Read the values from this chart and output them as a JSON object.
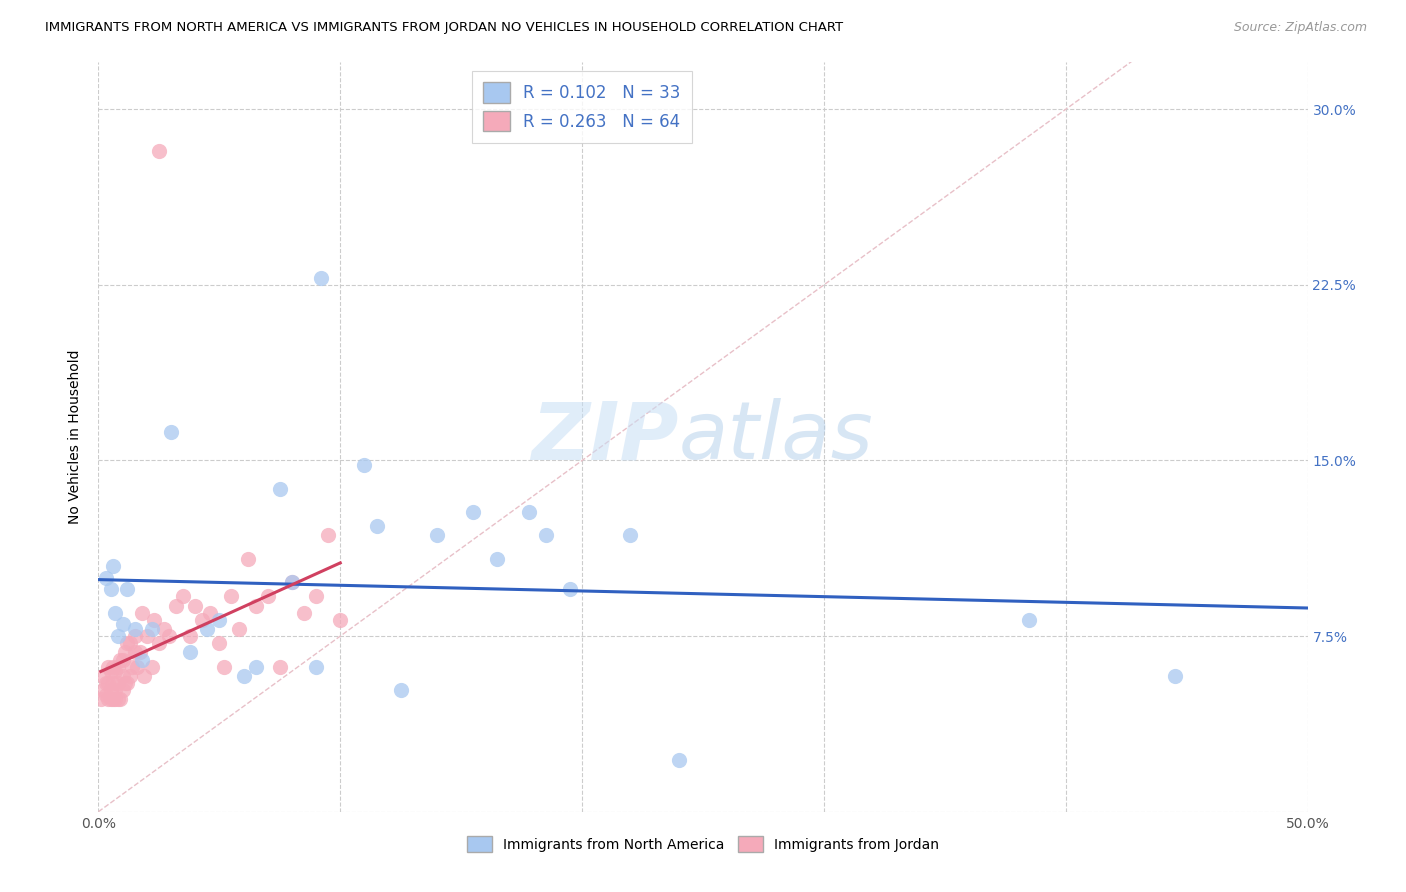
{
  "title": "IMMIGRANTS FROM NORTH AMERICA VS IMMIGRANTS FROM JORDAN NO VEHICLES IN HOUSEHOLD CORRELATION CHART",
  "source": "Source: ZipAtlas.com",
  "ylabel": "No Vehicles in Household",
  "xlim": [
    0.0,
    0.5
  ],
  "ylim": [
    0.0,
    0.32
  ],
  "xticks": [
    0.0,
    0.1,
    0.2,
    0.3,
    0.4,
    0.5
  ],
  "xticklabels": [
    "0.0%",
    "",
    "",
    "",
    "",
    "50.0%"
  ],
  "yticks": [
    0.0,
    0.075,
    0.15,
    0.225,
    0.3
  ],
  "yticklabels_right": [
    "",
    "7.5%",
    "15.0%",
    "22.5%",
    "30.0%"
  ],
  "grid_color": "#cccccc",
  "watermark_zip": "ZIP",
  "watermark_atlas": "atlas",
  "blue_dot_color": "#A8C8F0",
  "pink_dot_color": "#F5AABA",
  "blue_line_color": "#3060C0",
  "pink_line_color": "#D04060",
  "diag_color": "#D8C0C0",
  "legend_R_blue": "R = 0.102",
  "legend_N_blue": "N = 33",
  "legend_R_pink": "R = 0.263",
  "legend_N_pink": "N = 64",
  "north_america_x": [
    0.003,
    0.005,
    0.006,
    0.007,
    0.008,
    0.01,
    0.012,
    0.015,
    0.018,
    0.022,
    0.03,
    0.038,
    0.045,
    0.05,
    0.06,
    0.065,
    0.075,
    0.08,
    0.09,
    0.092,
    0.11,
    0.115,
    0.125,
    0.14,
    0.155,
    0.165,
    0.178,
    0.185,
    0.195,
    0.22,
    0.24,
    0.385,
    0.445
  ],
  "north_america_y": [
    0.1,
    0.095,
    0.105,
    0.085,
    0.075,
    0.08,
    0.095,
    0.078,
    0.065,
    0.078,
    0.162,
    0.068,
    0.078,
    0.082,
    0.058,
    0.062,
    0.138,
    0.098,
    0.062,
    0.228,
    0.148,
    0.122,
    0.052,
    0.118,
    0.128,
    0.108,
    0.128,
    0.118,
    0.095,
    0.118,
    0.022,
    0.082,
    0.058
  ],
  "jordan_x": [
    0.001,
    0.002,
    0.002,
    0.003,
    0.003,
    0.004,
    0.004,
    0.004,
    0.005,
    0.005,
    0.005,
    0.006,
    0.006,
    0.006,
    0.007,
    0.007,
    0.007,
    0.008,
    0.008,
    0.008,
    0.009,
    0.009,
    0.01,
    0.01,
    0.01,
    0.011,
    0.011,
    0.012,
    0.012,
    0.013,
    0.013,
    0.014,
    0.015,
    0.015,
    0.016,
    0.017,
    0.018,
    0.019,
    0.02,
    0.022,
    0.023,
    0.025,
    0.027,
    0.029,
    0.032,
    0.035,
    0.038,
    0.04,
    0.043,
    0.046,
    0.05,
    0.052,
    0.055,
    0.058,
    0.062,
    0.065,
    0.07,
    0.075,
    0.08,
    0.085,
    0.09,
    0.095,
    0.1,
    0.025
  ],
  "jordan_y": [
    0.048,
    0.052,
    0.058,
    0.05,
    0.055,
    0.048,
    0.055,
    0.062,
    0.048,
    0.052,
    0.06,
    0.048,
    0.055,
    0.062,
    0.048,
    0.052,
    0.06,
    0.048,
    0.055,
    0.062,
    0.048,
    0.065,
    0.052,
    0.058,
    0.065,
    0.055,
    0.068,
    0.055,
    0.072,
    0.058,
    0.072,
    0.062,
    0.068,
    0.075,
    0.062,
    0.068,
    0.085,
    0.058,
    0.075,
    0.062,
    0.082,
    0.072,
    0.078,
    0.075,
    0.088,
    0.092,
    0.075,
    0.088,
    0.082,
    0.085,
    0.072,
    0.062,
    0.092,
    0.078,
    0.108,
    0.088,
    0.092,
    0.062,
    0.098,
    0.085,
    0.092,
    0.118,
    0.082,
    0.282
  ]
}
